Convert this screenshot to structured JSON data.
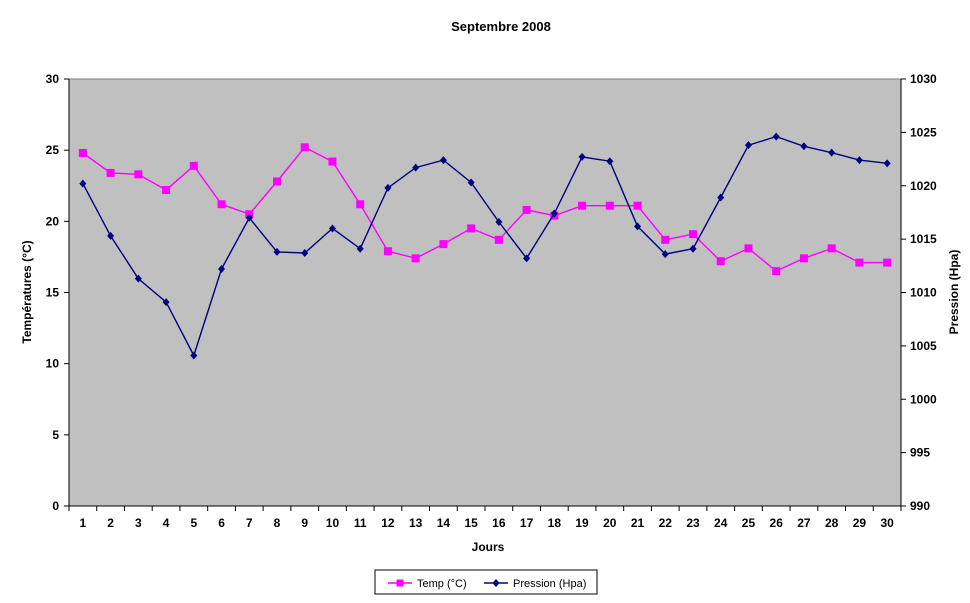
{
  "chart_data": {
    "type": "line",
    "title": "Septembre 2008",
    "xlabel": "Jours",
    "ylabel_left": "Températures  (°C)",
    "ylabel_right": "Pression (Hpa)",
    "x": [
      1,
      2,
      3,
      4,
      5,
      6,
      7,
      8,
      9,
      10,
      11,
      12,
      13,
      14,
      15,
      16,
      17,
      18,
      19,
      20,
      21,
      22,
      23,
      24,
      25,
      26,
      27,
      28,
      29,
      30
    ],
    "ylim_left": [
      0,
      30
    ],
    "yticks_left": [
      0,
      5,
      10,
      15,
      20,
      25,
      30
    ],
    "ylim_right": [
      990,
      1030
    ],
    "yticks_right": [
      990,
      995,
      1000,
      1005,
      1010,
      1015,
      1020,
      1025,
      1030
    ],
    "grid": false,
    "legend_position": "bottom",
    "plot_background": "#c0c0c0",
    "series": [
      {
        "name": "Temp (°C)",
        "axis": "left",
        "color": "#ff00ff",
        "marker": "square",
        "values": [
          24.8,
          23.4,
          23.3,
          22.2,
          23.9,
          21.2,
          20.5,
          22.8,
          25.2,
          24.2,
          21.2,
          17.9,
          17.4,
          18.4,
          19.5,
          18.7,
          20.8,
          20.4,
          21.1,
          21.1,
          21.1,
          18.7,
          19.1,
          17.2,
          18.1,
          16.5,
          17.4,
          18.1,
          17.1,
          17.1
        ]
      },
      {
        "name": "Pression (Hpa)",
        "axis": "right",
        "color": "#000080",
        "marker": "diamond",
        "values": [
          1020.2,
          1015.3,
          1011.3,
          1009.1,
          1004.1,
          1012.2,
          1017.0,
          1013.8,
          1013.7,
          1016.0,
          1014.1,
          1019.8,
          1021.7,
          1022.4,
          1020.3,
          1016.6,
          1013.2,
          1017.4,
          1022.7,
          1022.3,
          1016.2,
          1013.6,
          1014.1,
          1018.9,
          1023.8,
          1024.6,
          1023.7,
          1023.1,
          1022.4,
          1022.1
        ]
      }
    ]
  }
}
